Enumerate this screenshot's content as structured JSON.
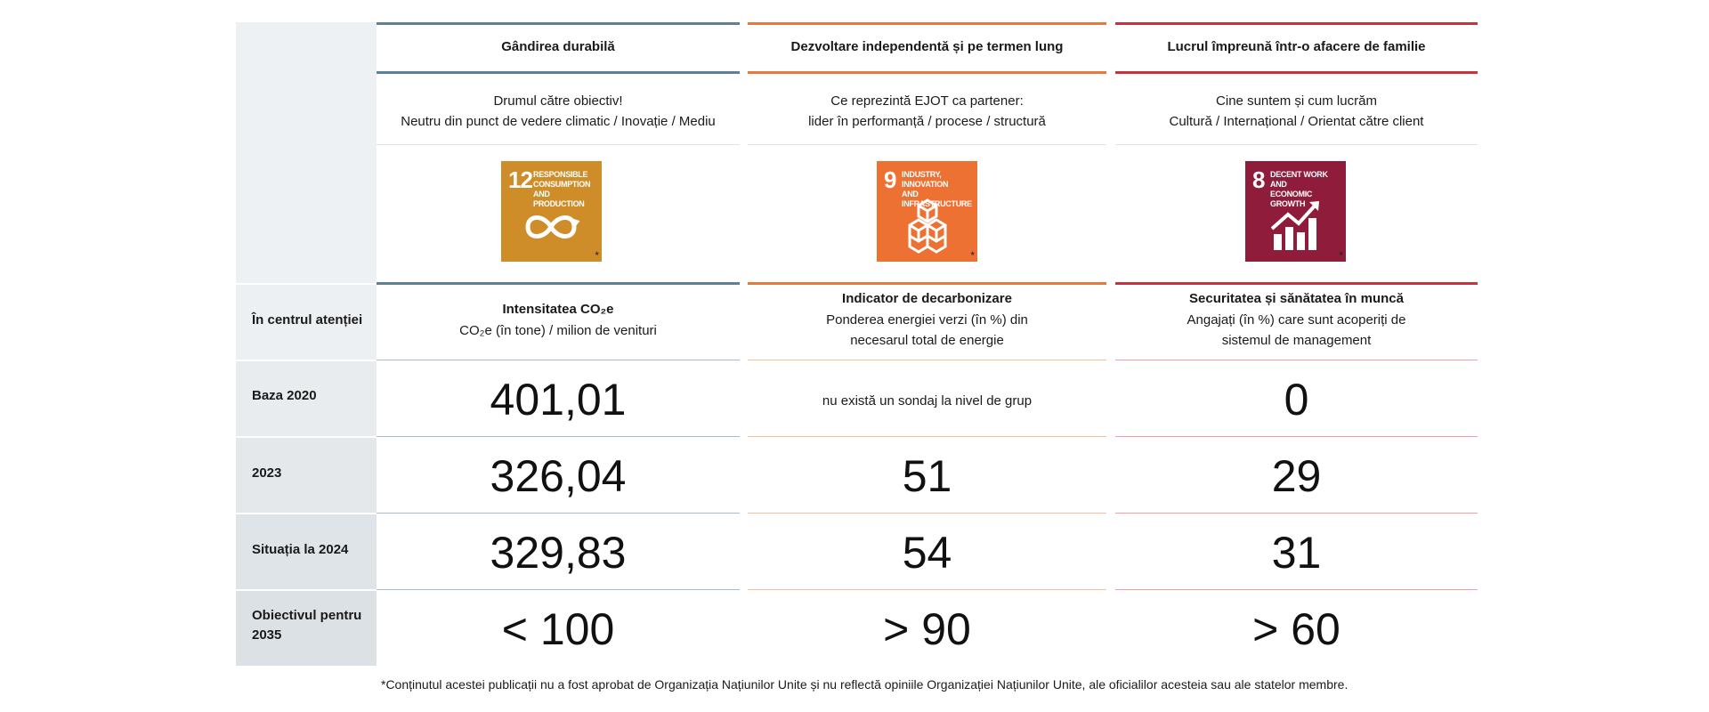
{
  "columns": [
    {
      "title": "Gândirea durabilă",
      "sub1": "Drumul către obiectiv!",
      "sub2": "Neutru din punct de vedere climatic / Inovație / Mediu",
      "sdg": {
        "number": "12",
        "line1": "RESPONSIBLE",
        "line2": "CONSUMPTION",
        "line3": "AND PRODUCTION",
        "color": "#cf8d2a",
        "icon": "infinity-icon"
      },
      "focus_title": "Intensitatea CO₂e",
      "focus_sub1": "CO₂e (în tone) / milion de venituri",
      "focus_sub2": "",
      "base2020": "401,01",
      "y2023": "326,04",
      "y2024": "329,83",
      "target2035": "< 100",
      "accent": "#5e7f98"
    },
    {
      "title": "Dezvoltare independentă și pe termen lung",
      "sub1": "Ce reprezintă EJOT ca partener:",
      "sub2": "lider în performanță / procese / structură",
      "sdg": {
        "number": "9",
        "line1": "INDUSTRY, INNOVATION",
        "line2": "AND INFRASTRUCTURE",
        "line3": "",
        "color": "#ee7134",
        "icon": "cubes-icon"
      },
      "focus_title": "Indicator de decarbonizare",
      "focus_sub1": "Ponderea energiei verzi (în %) din",
      "focus_sub2": "necesarul total de energie",
      "base2020": "nu există un sondaj la nivel de grup",
      "y2023": "51",
      "y2024": "54",
      "target2035": "> 90",
      "accent": "#e77a3a"
    },
    {
      "title": "Lucrul împreună într-o afacere de familie",
      "sub1": "Cine suntem și cum lucrăm",
      "sub2": "Cultură / Internațional / Orientat către client",
      "sdg": {
        "number": "8",
        "line1": "DECENT WORK AND",
        "line2": "ECONOMIC GROWTH",
        "line3": "",
        "color": "#8f1c3a",
        "icon": "growth-chart-icon"
      },
      "focus_title": "Securitatea și sănătatea în muncă",
      "focus_sub1": "Angajați (în %) care sunt acoperiți de",
      "focus_sub2": "sistemul de management",
      "base2020": "0",
      "y2023": "29",
      "y2024": "31",
      "target2035": "> 60",
      "accent": "#c8323f"
    }
  ],
  "row_labels": {
    "focus": "În centrul atenției",
    "base": "Baza 2020",
    "y2023": "2023",
    "y2024": "Situația la 2024",
    "target1": "Obiectivul pentru",
    "target2": "2035"
  },
  "footnote": "*Conținutul acestei publicații nu a fost aprobat de Organizația Națiunilor Unite și nu reflectă opiniile Organizației Națiunilor Unite, ale oficialilor acesteia sau ale statelor membre."
}
